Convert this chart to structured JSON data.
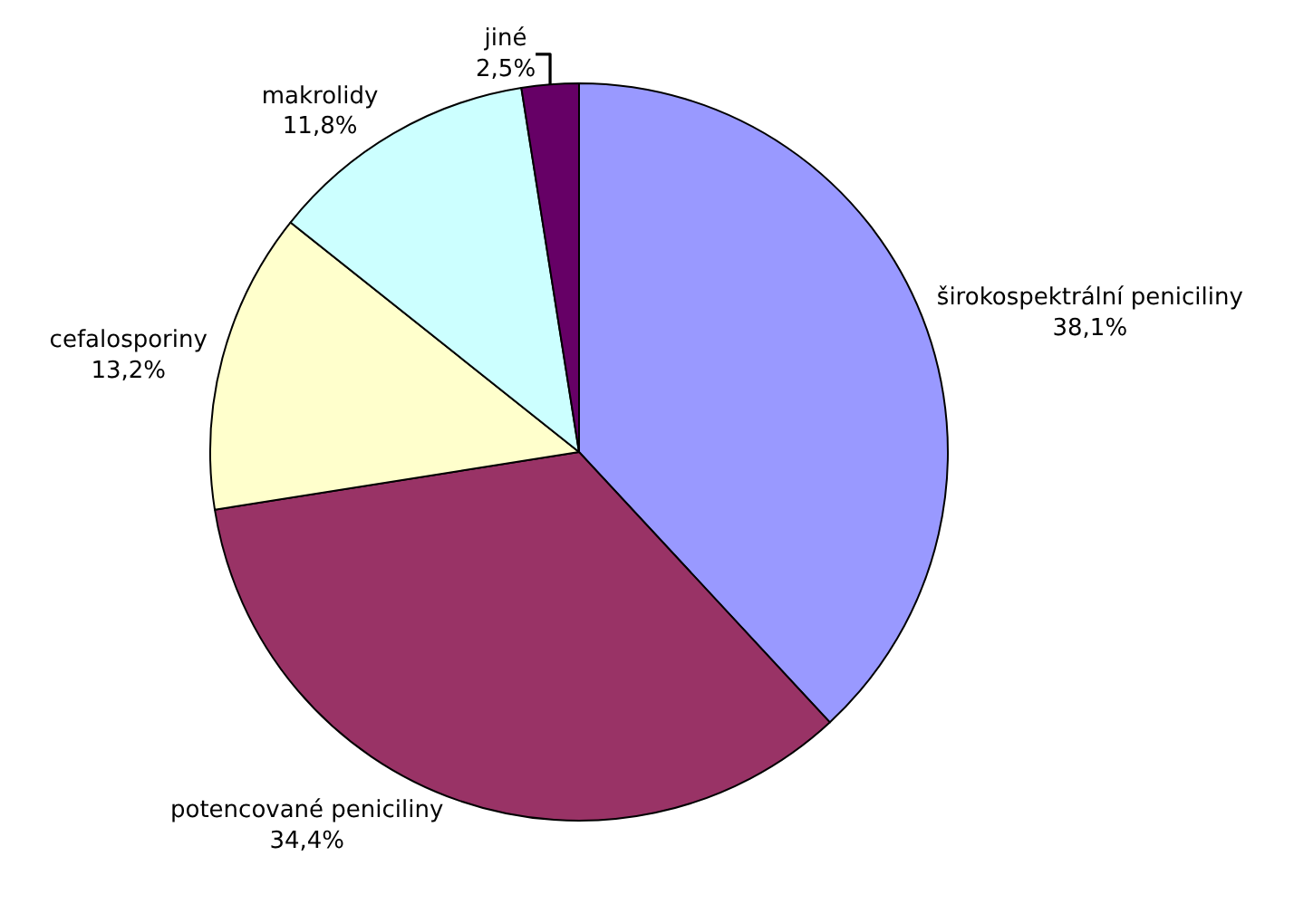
{
  "chart_data": {
    "type": "pie",
    "categories": [
      "širokospektrální peniciliny",
      "potencované peniciliny",
      "cefalosporiny",
      "makrolidy",
      "jiné"
    ],
    "values": [
      38.1,
      34.4,
      13.2,
      11.8,
      2.5
    ],
    "value_labels": [
      "38,1%",
      "34,4%",
      "13,2%",
      "11,8%",
      "2,5%"
    ],
    "colors": [
      "#9999ff",
      "#993366",
      "#ffffcc",
      "#ccffff",
      "#660066"
    ],
    "legend": false
  }
}
